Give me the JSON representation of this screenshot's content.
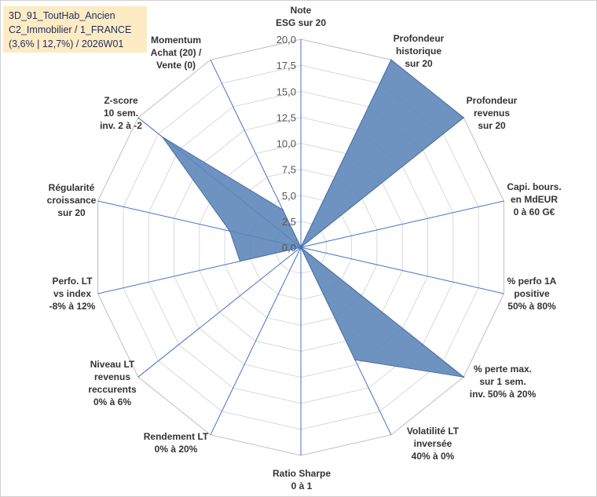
{
  "title_box": {
    "line1": "3D_91_ToutHab_Ancien",
    "line2": "C2_Immobilier / 1_FRANCE",
    "line3": "(3,6% | 12,7%) / 2026W01"
  },
  "colors": {
    "fill": "#5b84b8",
    "stroke": "#4a6fa5",
    "spokes": "#4472c4",
    "grid": "#d9d9d9"
  },
  "chart_data": {
    "type": "radar",
    "scale": {
      "min": 0,
      "max": 20,
      "step": 2.5
    },
    "tick_labels": [
      "0,0",
      "2,5",
      "5,0",
      "7,5",
      "10,0",
      "12,5",
      "15,0",
      "17,5",
      "20,0"
    ],
    "axes": [
      {
        "label": [
          "Note",
          "ESG sur 20"
        ],
        "value": 0
      },
      {
        "label": [
          "Profondeur",
          "historique",
          "sur 20"
        ],
        "value": 20
      },
      {
        "label": [
          "Profondeur",
          "revenus",
          "sur 20"
        ],
        "value": 20
      },
      {
        "label": [
          "Capi. bours.",
          "en MdEUR",
          "0 à 60 G€"
        ],
        "value": 0
      },
      {
        "label": [
          "% perfo 1A",
          "positive",
          "50% à 80%"
        ],
        "value": 0
      },
      {
        "label": [
          "% perte max.",
          "sur 1 sem.",
          "inv. 50% à 20%"
        ],
        "value": 20
      },
      {
        "label": [
          "Volatilité LT",
          "inversée",
          "40% à 0%"
        ],
        "value": 12
      },
      {
        "label": [
          "Ratio Sharpe",
          "0 à 1"
        ],
        "value": 0
      },
      {
        "label": [
          "Rendement LT",
          "0% à 20%"
        ],
        "value": 0
      },
      {
        "label": [
          "Niveau LT",
          "revenus",
          "reccurents",
          "0% à 6%"
        ],
        "value": 0
      },
      {
        "label": [
          "Perfo. LT",
          "vs index",
          "-8% à 12%"
        ],
        "value": 6
      },
      {
        "label": [
          "Régularité",
          "croissance",
          "sur 20"
        ],
        "value": 7
      },
      {
        "label": [
          "Z-score",
          "10 sem.",
          "inv. 2 à -2"
        ],
        "value": 17
      },
      {
        "label": [
          "Momentum",
          "Achat (20) /",
          "Vente (0)"
        ],
        "value": 4
      }
    ]
  }
}
